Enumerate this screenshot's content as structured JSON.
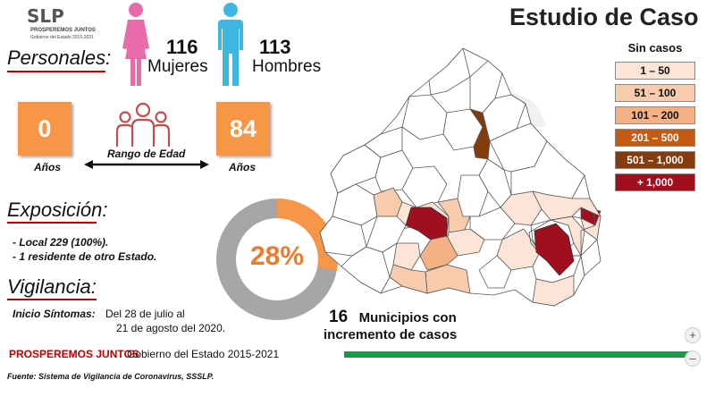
{
  "logo": {
    "main": "SLP",
    "sub1": "PROSPEREMOS JUNTOS",
    "sub2": "Gobierno del Estado 2015-2021"
  },
  "title": "Estudio de Caso",
  "personales": {
    "heading": "Personales:",
    "women_count": "116",
    "women_label": "Mujeres",
    "men_count": "113",
    "men_label": "Hombres",
    "women_color": "#e86aa8",
    "men_color": "#3fb6e2"
  },
  "age": {
    "min": "0",
    "min_label": "Años",
    "max": "84",
    "max_label": "Años",
    "range_label": "Rango de Edad"
  },
  "exposicion": {
    "heading": "Exposición:",
    "lines": [
      "- Local 229 (100%).",
      "- 1 residente de otro Estado."
    ]
  },
  "donut": {
    "label": "28%",
    "fraction": 0.28,
    "fill_color": "#f79646",
    "rest_color": "#a6a6a6"
  },
  "vigilancia": {
    "heading": "Vigilancia:",
    "inicio_label": "Inicio Síntomas:",
    "inicio_line1": "Del 28 de julio al",
    "inicio_line2": "21 de agosto del 2020."
  },
  "municipios": {
    "count": "16",
    "line1": "Municipios con",
    "line2": "incremento de casos"
  },
  "legend": {
    "title": "Sin casos",
    "items": [
      {
        "label": "1 – 50",
        "bg": "#fce4d6",
        "fg": "#111111"
      },
      {
        "label": "51 – 100",
        "bg": "#f8cbad",
        "fg": "#111111"
      },
      {
        "label": "101 – 200",
        "bg": "#f4b183",
        "fg": "#111111"
      },
      {
        "label": "201 – 500",
        "bg": "#c55a11",
        "fg": "#ffffff"
      },
      {
        "label": "501 – 1,000",
        "bg": "#843c0c",
        "fg": "#ffffff"
      },
      {
        "label": "+ 1,000",
        "bg": "#a00f1e",
        "fg": "#ffffff"
      }
    ]
  },
  "footer": {
    "prosperemos": "PROSPEREMOS JUNTOS",
    "gobierno": "Gobierno del Estado 2015-2021",
    "fuente": "Fuente: Sistema de Vigilancia de Coronavirus, SSSLP."
  },
  "controls": {
    "zoom_in": "+",
    "zoom_out": "–"
  }
}
